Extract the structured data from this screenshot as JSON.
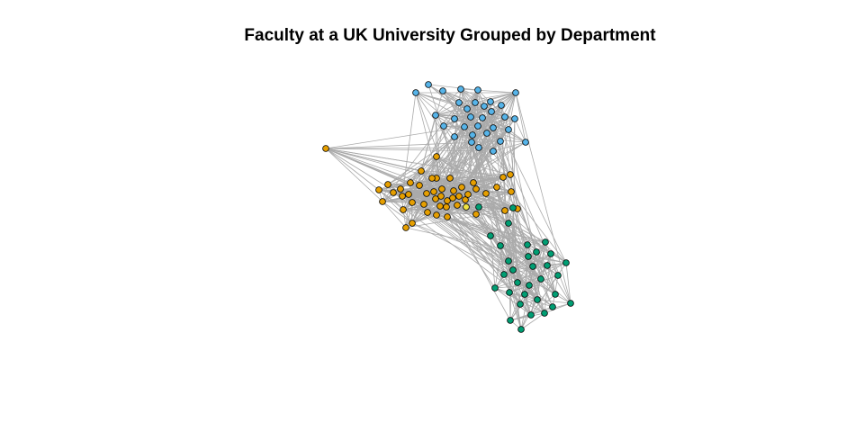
{
  "title": "Faculty at a UK University Grouped by Department",
  "colors": {
    "edge": "#aaaaaa",
    "node_outline": "#000000",
    "dept_blue": "#56b4e9",
    "dept_orange": "#e69f00",
    "dept_green": "#009e73",
    "dept_yellow": "#f0e442"
  },
  "chart_data": {
    "type": "network",
    "title": "Faculty at a UK University Grouped by Department",
    "groups": [
      {
        "name": "blue",
        "color": "#56b4e9",
        "node_count": 32
      },
      {
        "name": "orange",
        "color": "#e69f00",
        "node_count": 48
      },
      {
        "name": "green",
        "color": "#009e73",
        "node_count": 32
      },
      {
        "name": "yellow",
        "color": "#f0e442",
        "node_count": 1
      }
    ]
  }
}
